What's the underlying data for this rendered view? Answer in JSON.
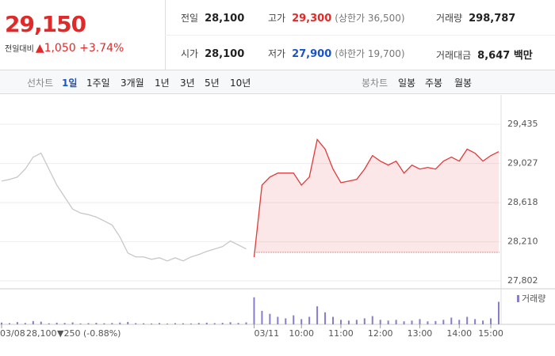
{
  "header": {
    "price": "29,150",
    "change_label": "전일대비",
    "change": "▲1,050",
    "change_pct": "+3.74%",
    "stats": [
      {
        "label": "전일",
        "value": "28,100"
      },
      {
        "label": "고가",
        "value": "29,300",
        "note": "(상한가 36,500)"
      },
      {
        "label": "거래량",
        "value": "298,787"
      },
      {
        "label": "시가",
        "value": "28,100"
      },
      {
        "label": "저가",
        "value": "27,900",
        "note": "(하한가 19,700)"
      },
      {
        "label": "거래대금",
        "value": "8,647 백만"
      }
    ]
  },
  "tabs": {
    "line_label": "선차트",
    "line_items": [
      "1일",
      "1주일",
      "3개월",
      "1년",
      "3년",
      "5년",
      "10년"
    ],
    "candle_label": "봉차트",
    "candle_items": [
      "일봉",
      "주봉",
      "월봉"
    ]
  },
  "chart_data": {
    "type": "line",
    "categories": [
      "03/08",
      null,
      null,
      null,
      null,
      null,
      null,
      null,
      null,
      null,
      null,
      null,
      null,
      null,
      null,
      null,
      null,
      null,
      null,
      null,
      null,
      null,
      null,
      null,
      null,
      null,
      null,
      null,
      null,
      null,
      null,
      null,
      "03/11",
      null,
      null,
      null,
      null,
      null,
      "10:00",
      null,
      null,
      null,
      null,
      "11:00",
      null,
      null,
      null,
      null,
      "12:00",
      null,
      null,
      null,
      null,
      "13:00",
      null,
      null,
      null,
      null,
      "14:00",
      null,
      null,
      null,
      "15:00",
      null
    ],
    "series": [
      {
        "color": "#c8c8c8",
        "values": [
          28843,
          28860,
          28885,
          28968,
          29093,
          29134,
          28968,
          28801,
          28676,
          28551,
          28510,
          28493,
          28468,
          28427,
          28385,
          28260,
          28093,
          28052,
          28052,
          28027,
          28043,
          28010,
          28043,
          28010,
          28052,
          28077,
          28110,
          28135,
          28160,
          28218,
          28177,
          28135,
          null,
          null,
          null,
          null,
          null,
          null,
          null,
          null,
          null,
          null,
          null,
          null,
          null,
          null,
          null,
          null,
          null,
          null,
          null,
          null,
          null,
          null,
          null,
          null,
          null,
          null,
          null,
          null,
          null,
          null,
          null,
          null
        ]
      },
      {
        "color": "#e03a3a",
        "values": [
          null,
          null,
          null,
          null,
          null,
          null,
          null,
          null,
          null,
          null,
          null,
          null,
          null,
          null,
          null,
          null,
          null,
          null,
          null,
          null,
          null,
          null,
          null,
          null,
          null,
          null,
          null,
          null,
          null,
          null,
          null,
          null,
          28050,
          28801,
          28885,
          28926,
          28926,
          28926,
          28801,
          28885,
          29276,
          29176,
          28968,
          28826,
          28843,
          28860,
          28968,
          29109,
          29051,
          29010,
          29051,
          28926,
          29010,
          28968,
          28985,
          28968,
          29051,
          29093,
          29051,
          29176,
          29134,
          29051,
          29109,
          29150
        ]
      }
    ],
    "baseline": 28100,
    "ylim": [
      27720,
      29700
    ],
    "yticks": [
      {
        "value": 29435,
        "label": "29,435"
      },
      {
        "value": 29027,
        "label": "29,027"
      },
      {
        "value": 28618,
        "label": "28,618"
      },
      {
        "value": 28210,
        "label": "28,210"
      },
      {
        "value": 27802,
        "label": "27,802"
      }
    ],
    "grid": true,
    "volume": {
      "name": "거래량",
      "color": "#8a7cc8",
      "ylim": [
        0,
        20000
      ],
      "values": [
        1200,
        800,
        1500,
        900,
        2200,
        1800,
        700,
        1100,
        900,
        1300,
        600,
        800,
        1000,
        700,
        900,
        1200,
        1600,
        800,
        700,
        600,
        900,
        500,
        800,
        700,
        600,
        900,
        1100,
        800,
        1000,
        1400,
        900,
        1300,
        18000,
        9000,
        7000,
        5000,
        4000,
        6000,
        3500,
        5000,
        12000,
        8000,
        5000,
        3000,
        2500,
        3000,
        4000,
        5500,
        3000,
        2500,
        3000,
        2000,
        2500,
        3500,
        2000,
        2200,
        3000,
        4500,
        3000,
        5000,
        3500,
        2500,
        4000,
        15000
      ]
    },
    "prev_close": "28,100",
    "prev_change": "▼250 (-0.88%)"
  }
}
